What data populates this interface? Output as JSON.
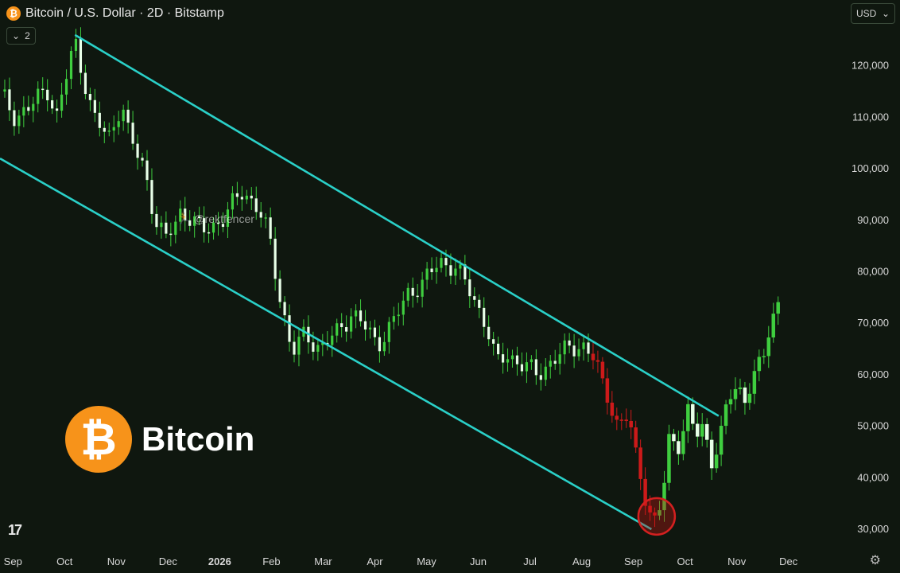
{
  "header": {
    "coin_glyph": "₿",
    "title": "Bitcoin / U.S. Dollar · 2D · Bitstamp",
    "interval_badge": "2",
    "currency": "USD"
  },
  "brand": {
    "glyph": "₿",
    "name": "Bitcoin"
  },
  "watermark": "@rektfencer",
  "tv_logo": "17",
  "colors": {
    "up": "#3fce3f",
    "down": "#cc1a1a",
    "channel": "#2ad0c8",
    "marker": "#d42020",
    "background": "#0f170f"
  },
  "chart_data": {
    "type": "candlestick",
    "title": "Bitcoin / U.S. Dollar · 2D · Bitstamp",
    "ylim": [
      25000,
      130000
    ],
    "yticks": [
      30000,
      40000,
      50000,
      60000,
      70000,
      80000,
      90000,
      100000,
      110000,
      120000
    ],
    "ytick_labels": [
      "30,000",
      "40,000",
      "50,000",
      "60,000",
      "70,000",
      "80,000",
      "90,000",
      "100,000",
      "110,000",
      "120,000"
    ],
    "xlim": [
      0,
      16.3
    ],
    "xticks": [
      {
        "label": "Sep",
        "x": 0.25
      },
      {
        "label": "Oct",
        "x": 1.25
      },
      {
        "label": "Nov",
        "x": 2.25
      },
      {
        "label": "Dec",
        "x": 3.25
      },
      {
        "label": "2026",
        "x": 4.25,
        "bold": true
      },
      {
        "label": "Feb",
        "x": 5.25
      },
      {
        "label": "Mar",
        "x": 6.25
      },
      {
        "label": "Apr",
        "x": 7.25
      },
      {
        "label": "May",
        "x": 8.25
      },
      {
        "label": "Jun",
        "x": 9.25
      },
      {
        "label": "Jul",
        "x": 10.25
      },
      {
        "label": "Aug",
        "x": 11.25
      },
      {
        "label": "Sep",
        "x": 12.25
      },
      {
        "label": "Oct",
        "x": 13.25
      },
      {
        "label": "Nov",
        "x": 14.25
      },
      {
        "label": "Dec",
        "x": 15.25
      }
    ],
    "close_path": [
      [
        0,
        115000
      ],
      [
        0.3,
        110000
      ],
      [
        0.6,
        112000
      ],
      [
        0.9,
        116000
      ],
      [
        1.1,
        110000
      ],
      [
        1.45,
        125000
      ],
      [
        1.8,
        110000
      ],
      [
        2.1,
        106000
      ],
      [
        2.35,
        113000
      ],
      [
        2.5,
        106000
      ],
      [
        2.8,
        100000
      ],
      [
        3.0,
        90000
      ],
      [
        3.2,
        86000
      ],
      [
        3.5,
        92000
      ],
      [
        3.9,
        88000
      ],
      [
        4.3,
        90000
      ],
      [
        4.7,
        96000
      ],
      [
        5.0,
        92000
      ],
      [
        5.2,
        87000
      ],
      [
        5.4,
        76000
      ],
      [
        5.65,
        64000
      ],
      [
        5.9,
        68000
      ],
      [
        6.2,
        65000
      ],
      [
        6.5,
        68000
      ],
      [
        6.8,
        72000
      ],
      [
        7.0,
        70000
      ],
      [
        7.3,
        66000
      ],
      [
        7.6,
        70000
      ],
      [
        7.9,
        76000
      ],
      [
        8.2,
        78000
      ],
      [
        8.5,
        82000
      ],
      [
        8.8,
        81000
      ],
      [
        9.1,
        76000
      ],
      [
        9.4,
        70000
      ],
      [
        9.6,
        62000
      ],
      [
        9.8,
        64000
      ],
      [
        10.1,
        62000
      ],
      [
        10.4,
        60000
      ],
      [
        10.7,
        63000
      ],
      [
        11.0,
        65000
      ],
      [
        11.25,
        66000
      ],
      [
        11.5,
        63000
      ],
      [
        11.65,
        58000
      ],
      [
        11.8,
        55000
      ],
      [
        11.95,
        50000
      ],
      [
        12.15,
        52000
      ],
      [
        12.3,
        44000
      ],
      [
        12.45,
        38000
      ],
      [
        12.55,
        34000
      ],
      [
        12.65,
        31000
      ],
      [
        12.8,
        35000
      ],
      [
        12.95,
        48000
      ],
      [
        13.1,
        46000
      ],
      [
        13.3,
        53000
      ],
      [
        13.45,
        48000
      ],
      [
        13.6,
        50000
      ],
      [
        13.75,
        43000
      ],
      [
        13.95,
        49000
      ],
      [
        14.1,
        55000
      ],
      [
        14.25,
        58000
      ],
      [
        14.4,
        55000
      ],
      [
        14.55,
        60000
      ],
      [
        14.75,
        62000
      ],
      [
        14.9,
        70000
      ],
      [
        15.05,
        74000
      ]
    ],
    "channel_upper": [
      [
        1.45,
        126000
      ],
      [
        13.9,
        52000
      ]
    ],
    "channel_lower": [
      [
        0,
        102000
      ],
      [
        12.6,
        30000
      ]
    ],
    "highlight": {
      "x": 12.7,
      "y": 32500,
      "label": "low"
    }
  }
}
